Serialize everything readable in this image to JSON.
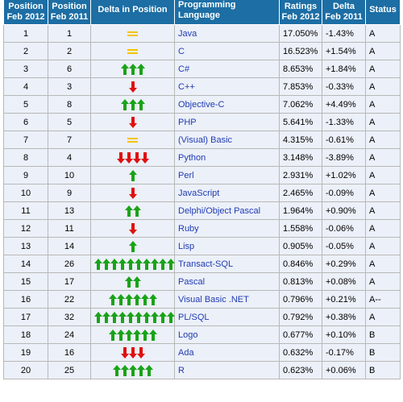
{
  "table": {
    "headers": {
      "pos_2012": [
        "Position",
        "Feb 2012"
      ],
      "pos_2011": [
        "Position",
        "Feb 2011"
      ],
      "delta_position": "Delta in Position",
      "language": "Programming Language",
      "ratings": [
        "Ratings",
        "Feb 2012"
      ],
      "delta": [
        "Delta",
        "Feb 2011"
      ],
      "status": "Status"
    },
    "colors": {
      "header_bg": "#1c6ea4",
      "row_bg": "#ecf0f8",
      "link": "#1f3bb4",
      "up_arrow": "#19a319",
      "down_arrow": "#e01010",
      "equal": "#f5c400"
    },
    "rows": [
      {
        "pos2012": "1",
        "pos2011": "1",
        "change": "equal",
        "arrows": 0,
        "language": "Java",
        "rating": "17.050%",
        "delta": "-1.43%",
        "status": "A"
      },
      {
        "pos2012": "2",
        "pos2011": "2",
        "change": "equal",
        "arrows": 0,
        "language": "C",
        "rating": "16.523%",
        "delta": "+1.54%",
        "status": "A"
      },
      {
        "pos2012": "3",
        "pos2011": "6",
        "change": "up",
        "arrows": 3,
        "language": "C#",
        "rating": "8.653%",
        "delta": "+1.84%",
        "status": "A"
      },
      {
        "pos2012": "4",
        "pos2011": "3",
        "change": "down",
        "arrows": 1,
        "language": "C++",
        "rating": "7.853%",
        "delta": "-0.33%",
        "status": "A"
      },
      {
        "pos2012": "5",
        "pos2011": "8",
        "change": "up",
        "arrows": 3,
        "language": "Objective-C",
        "rating": "7.062%",
        "delta": "+4.49%",
        "status": "A"
      },
      {
        "pos2012": "6",
        "pos2011": "5",
        "change": "down",
        "arrows": 1,
        "language": "PHP",
        "rating": "5.641%",
        "delta": "-1.33%",
        "status": "A"
      },
      {
        "pos2012": "7",
        "pos2011": "7",
        "change": "equal",
        "arrows": 0,
        "language": "(Visual) Basic",
        "rating": "4.315%",
        "delta": "-0.61%",
        "status": "A"
      },
      {
        "pos2012": "8",
        "pos2011": "4",
        "change": "down",
        "arrows": 4,
        "language": "Python",
        "rating": "3.148%",
        "delta": "-3.89%",
        "status": "A"
      },
      {
        "pos2012": "9",
        "pos2011": "10",
        "change": "up",
        "arrows": 1,
        "language": "Perl",
        "rating": "2.931%",
        "delta": "+1.02%",
        "status": "A"
      },
      {
        "pos2012": "10",
        "pos2011": "9",
        "change": "down",
        "arrows": 1,
        "language": "JavaScript",
        "rating": "2.465%",
        "delta": "-0.09%",
        "status": "A"
      },
      {
        "pos2012": "11",
        "pos2011": "13",
        "change": "up",
        "arrows": 2,
        "language": "Delphi/Object Pascal",
        "rating": "1.964%",
        "delta": "+0.90%",
        "status": "A"
      },
      {
        "pos2012": "12",
        "pos2011": "11",
        "change": "down",
        "arrows": 1,
        "language": "Ruby",
        "rating": "1.558%",
        "delta": "-0.06%",
        "status": "A"
      },
      {
        "pos2012": "13",
        "pos2011": "14",
        "change": "up",
        "arrows": 1,
        "language": "Lisp",
        "rating": "0.905%",
        "delta": "-0.05%",
        "status": "A"
      },
      {
        "pos2012": "14",
        "pos2011": "26",
        "change": "up",
        "arrows": 10,
        "language": "Transact-SQL",
        "rating": "0.846%",
        "delta": "+0.29%",
        "status": "A"
      },
      {
        "pos2012": "15",
        "pos2011": "17",
        "change": "up",
        "arrows": 2,
        "language": "Pascal",
        "rating": "0.813%",
        "delta": "+0.08%",
        "status": "A"
      },
      {
        "pos2012": "16",
        "pos2011": "22",
        "change": "up",
        "arrows": 6,
        "language": "Visual Basic .NET",
        "rating": "0.796%",
        "delta": "+0.21%",
        "status": "A--"
      },
      {
        "pos2012": "17",
        "pos2011": "32",
        "change": "up",
        "arrows": 10,
        "language": "PL/SQL",
        "rating": "0.792%",
        "delta": "+0.38%",
        "status": "A"
      },
      {
        "pos2012": "18",
        "pos2011": "24",
        "change": "up",
        "arrows": 6,
        "language": "Logo",
        "rating": "0.677%",
        "delta": "+0.10%",
        "status": "B"
      },
      {
        "pos2012": "19",
        "pos2011": "16",
        "change": "down",
        "arrows": 3,
        "language": "Ada",
        "rating": "0.632%",
        "delta": "-0.17%",
        "status": "B"
      },
      {
        "pos2012": "20",
        "pos2011": "25",
        "change": "up",
        "arrows": 5,
        "language": "R",
        "rating": "0.623%",
        "delta": "+0.06%",
        "status": "B"
      }
    ]
  }
}
